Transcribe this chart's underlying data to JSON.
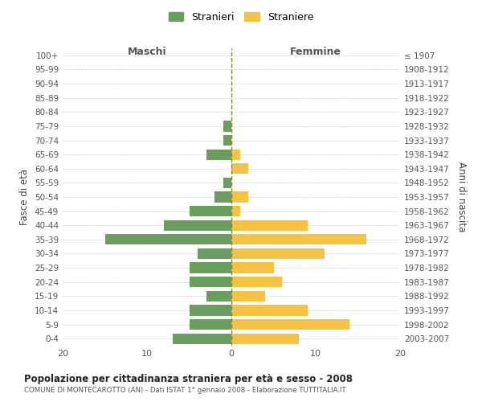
{
  "age_groups": [
    "0-4",
    "5-9",
    "10-14",
    "15-19",
    "20-24",
    "25-29",
    "30-34",
    "35-39",
    "40-44",
    "45-49",
    "50-54",
    "55-59",
    "60-64",
    "65-69",
    "70-74",
    "75-79",
    "80-84",
    "85-89",
    "90-94",
    "95-99",
    "100+"
  ],
  "birth_years": [
    "2003-2007",
    "1998-2002",
    "1993-1997",
    "1988-1992",
    "1983-1987",
    "1978-1982",
    "1973-1977",
    "1968-1972",
    "1963-1967",
    "1958-1962",
    "1953-1957",
    "1948-1952",
    "1943-1947",
    "1938-1942",
    "1933-1937",
    "1928-1932",
    "1923-1927",
    "1918-1922",
    "1913-1917",
    "1908-1912",
    "≤ 1907"
  ],
  "maschi": [
    7,
    5,
    5,
    3,
    5,
    5,
    4,
    15,
    8,
    5,
    2,
    1,
    0,
    3,
    1,
    1,
    0,
    0,
    0,
    0,
    0
  ],
  "femmine": [
    8,
    14,
    9,
    4,
    6,
    5,
    11,
    16,
    9,
    1,
    2,
    0,
    2,
    1,
    0,
    0,
    0,
    0,
    0,
    0,
    0
  ],
  "maschi_color": "#6b9e5e",
  "femmine_color": "#f5c242",
  "background_color": "#ffffff",
  "grid_color": "#cccccc",
  "title": "Popolazione per cittadinanza straniera per età e sesso - 2008",
  "subtitle": "COMUNE DI MONTECAROTTO (AN) - Dati ISTAT 1° gennaio 2008 - Elaborazione TUTTITALIA.IT",
  "label_maschi": "Maschi",
  "label_femmine": "Femmine",
  "ylabel_left": "Fasce di età",
  "ylabel_right": "Anni di nascita",
  "legend_maschi": "Stranieri",
  "legend_femmine": "Straniere",
  "xlim": 20
}
